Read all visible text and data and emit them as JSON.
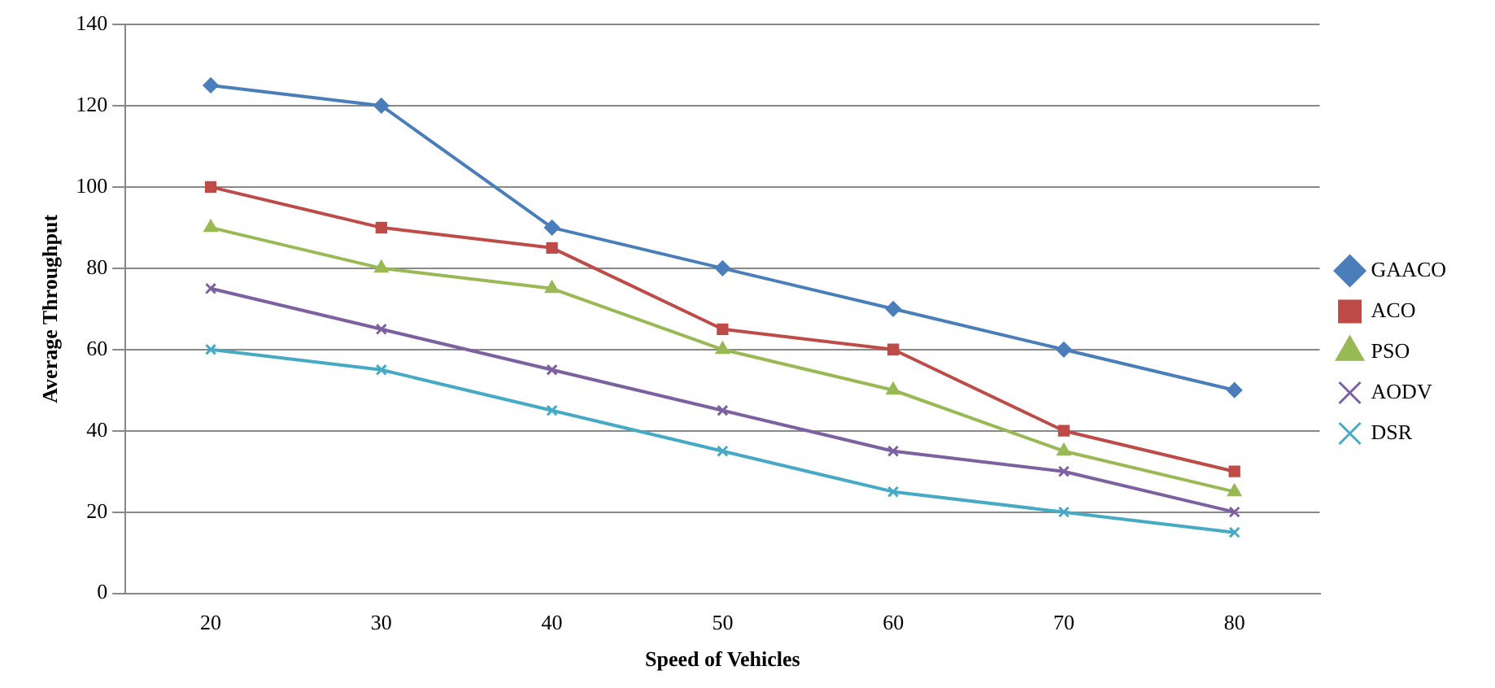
{
  "chart_data": {
    "type": "line",
    "xlabel": "Speed of Vehicles",
    "ylabel": "Average Throughput",
    "categories": [
      "20",
      "30",
      "40",
      "50",
      "60",
      "70",
      "80"
    ],
    "series": [
      {
        "name": "GAACO",
        "color": "#4a7ebb",
        "marker": "diamond",
        "values": [
          125,
          120,
          90,
          80,
          70,
          60,
          50
        ]
      },
      {
        "name": "ACO",
        "color": "#be4b48",
        "marker": "square",
        "values": [
          100,
          90,
          85,
          65,
          60,
          40,
          30
        ]
      },
      {
        "name": "PSO",
        "color": "#98b954",
        "marker": "triangle",
        "values": [
          90,
          80,
          75,
          60,
          50,
          35,
          25
        ]
      },
      {
        "name": "AODV",
        "color": "#7d60a0",
        "marker": "cross",
        "values": [
          75,
          65,
          55,
          45,
          35,
          30,
          20
        ]
      },
      {
        "name": "DSR",
        "color": "#46aac5",
        "marker": "cross",
        "values": [
          60,
          55,
          45,
          35,
          25,
          20,
          15
        ]
      }
    ],
    "ylim": [
      0,
      140
    ],
    "yticks": [
      0,
      20,
      40,
      60,
      80,
      100,
      120,
      140
    ],
    "grid": "y",
    "legend": "right",
    "line_style": "solid"
  }
}
